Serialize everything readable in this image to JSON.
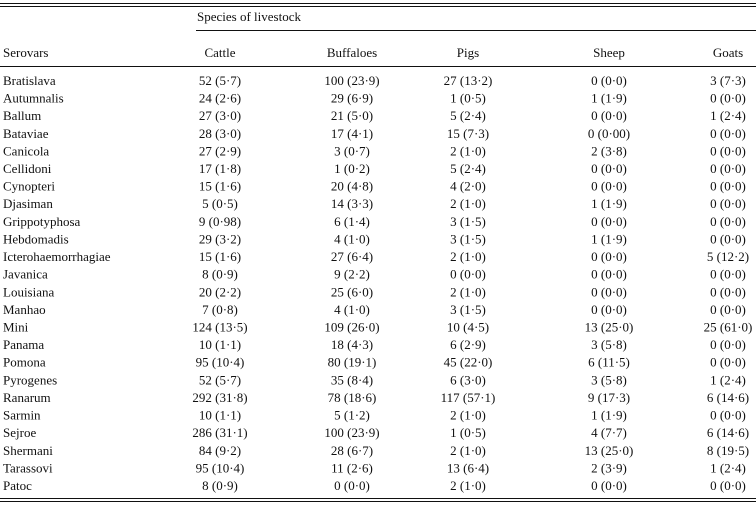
{
  "table": {
    "spanner": "Species of livestock",
    "columns": [
      "Serovars",
      "Cattle",
      "Buffaloes",
      "Pigs",
      "Sheep",
      "Goats"
    ],
    "rows": [
      [
        "Bratislava",
        "52 (5·7)",
        "100 (23·9)",
        "27 (13·2)",
        "0 (0·0)",
        "3 (7·3)"
      ],
      [
        "Autumnalis",
        "24 (2·6)",
        "29 (6·9)",
        "1 (0·5)",
        "1 (1·9)",
        "0 (0·0)"
      ],
      [
        "Ballum",
        "27 (3·0)",
        "21 (5·0)",
        "5 (2·4)",
        "0 (0·0)",
        "1 (2·4)"
      ],
      [
        "Bataviae",
        "28 (3·0)",
        "17 (4·1)",
        "15 (7·3)",
        "0 (0·00)",
        "0 (0·0)"
      ],
      [
        "Canicola",
        "27 (2·9)",
        "3 (0·7)",
        "2 (1·0)",
        "2 (3·8)",
        "0 (0·0)"
      ],
      [
        "Cellidoni",
        "17 (1·8)",
        "1 (0·2)",
        "5 (2·4)",
        "0 (0·0)",
        "0 (0·0)"
      ],
      [
        "Cynopteri",
        "15 (1·6)",
        "20 (4·8)",
        "4 (2·0)",
        "0 (0·0)",
        "0 (0·0)"
      ],
      [
        "Djasiman",
        "5 (0·5)",
        "14 (3·3)",
        "2 (1·0)",
        "1 (1·9)",
        "0 (0·0)"
      ],
      [
        "Grippotyphosa",
        "9 (0·98)",
        "6 (1·4)",
        "3 (1·5)",
        "0 (0·0)",
        "0 (0·0)"
      ],
      [
        "Hebdomadis",
        "29 (3·2)",
        "4 (1·0)",
        "3 (1·5)",
        "1 (1·9)",
        "0 (0·0)"
      ],
      [
        "Icterohaemorrhagiae",
        "15 (1·6)",
        "27 (6·4)",
        "2 (1·0)",
        "0 (0·0)",
        "5 (12·2)"
      ],
      [
        "Javanica",
        "8 (0·9)",
        "9 (2·2)",
        "0 (0·0)",
        "0 (0·0)",
        "0 (0·0)"
      ],
      [
        "Louisiana",
        "20 (2·2)",
        "25 (6·0)",
        "2 (1·0)",
        "0 (0·0)",
        "0 (0·0)"
      ],
      [
        "Manhao",
        "7 (0·8)",
        "4 (1·0)",
        "3 (1·5)",
        "0 (0·0)",
        "0 (0·0)"
      ],
      [
        "Mini",
        "124 (13·5)",
        "109 (26·0)",
        "10 (4·5)",
        "13 (25·0)",
        "25 (61·0)"
      ],
      [
        "Panama",
        "10 (1·1)",
        "18 (4·3)",
        "6 (2·9)",
        "3 (5·8)",
        "0 (0·0)"
      ],
      [
        "Pomona",
        "95 (10·4)",
        "80 (19·1)",
        "45 (22·0)",
        "6 (11·5)",
        "0 (0·0)"
      ],
      [
        "Pyrogenes",
        "52 (5·7)",
        "35 (8·4)",
        "6 (3·0)",
        "3 (5·8)",
        "1 (2·4)"
      ],
      [
        "Ranarum",
        "292 (31·8)",
        "78 (18·6)",
        "117 (57·1)",
        "9 (17·3)",
        "6 (14·6)"
      ],
      [
        "Sarmin",
        "10 (1·1)",
        "5 (1·2)",
        "2 (1·0)",
        "1 (1·9)",
        "0 (0·0)"
      ],
      [
        "Sejroe",
        "286 (31·1)",
        "100 (23·9)",
        "1 (0·5)",
        "4 (7·7)",
        "6 (14·6)"
      ],
      [
        "Shermani",
        "84 (9·2)",
        "28 (6·7)",
        "2 (1·0)",
        "13 (25·0)",
        "8 (19·5)"
      ],
      [
        "Tarassovi",
        "95 (10·4)",
        "11 (2·6)",
        "13 (6·4)",
        "2 (3·9)",
        "1 (2·4)"
      ],
      [
        "Patoc",
        "8 (0·9)",
        "0 (0·0)",
        "2 (1·0)",
        "0 (0·0)",
        "0 (0·0)"
      ]
    ]
  }
}
